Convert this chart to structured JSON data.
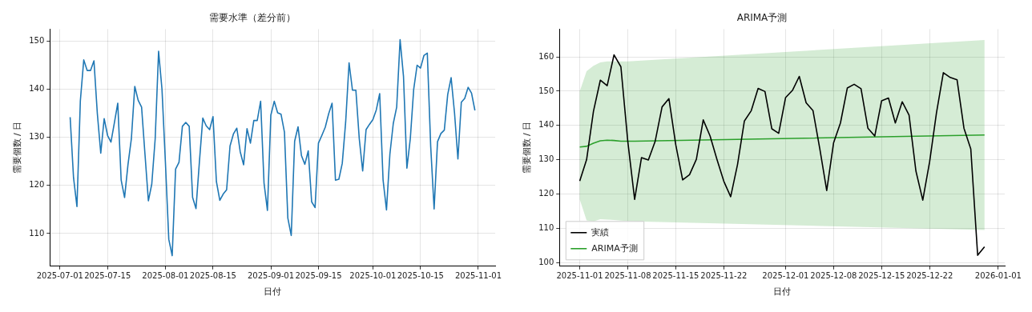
{
  "chart_data": [
    {
      "type": "line",
      "title": "需要水準（差分前）",
      "xlabel": "日付",
      "ylabel": "需要個数 / 日",
      "grid": true,
      "legend": false,
      "marker": "none",
      "line_style": "solid",
      "x": [
        "2025-07-04",
        "2025-07-05",
        "2025-07-06",
        "2025-07-07",
        "2025-07-08",
        "2025-07-09",
        "2025-07-10",
        "2025-07-11",
        "2025-07-12",
        "2025-07-13",
        "2025-07-14",
        "2025-07-15",
        "2025-07-16",
        "2025-07-17",
        "2025-07-18",
        "2025-07-19",
        "2025-07-20",
        "2025-07-21",
        "2025-07-22",
        "2025-07-23",
        "2025-07-24",
        "2025-07-25",
        "2025-07-26",
        "2025-07-27",
        "2025-07-28",
        "2025-07-29",
        "2025-07-30",
        "2025-07-31",
        "2025-08-01",
        "2025-08-02",
        "2025-08-03",
        "2025-08-04",
        "2025-08-05",
        "2025-08-06",
        "2025-08-07",
        "2025-08-08",
        "2025-08-09",
        "2025-08-10",
        "2025-08-11",
        "2025-08-12",
        "2025-08-13",
        "2025-08-14",
        "2025-08-15",
        "2025-08-16",
        "2025-08-17",
        "2025-08-18",
        "2025-08-19",
        "2025-08-20",
        "2025-08-21",
        "2025-08-22",
        "2025-08-23",
        "2025-08-24",
        "2025-08-25",
        "2025-08-26",
        "2025-08-27",
        "2025-08-28",
        "2025-08-29",
        "2025-08-30",
        "2025-08-31",
        "2025-09-01",
        "2025-09-02",
        "2025-09-03",
        "2025-09-04",
        "2025-09-05",
        "2025-09-06",
        "2025-09-07",
        "2025-09-08",
        "2025-09-09",
        "2025-09-10",
        "2025-09-11",
        "2025-09-12",
        "2025-09-13",
        "2025-09-14",
        "2025-09-15",
        "2025-09-16",
        "2025-09-17",
        "2025-09-18",
        "2025-09-19",
        "2025-09-20",
        "2025-09-21",
        "2025-09-22",
        "2025-09-23",
        "2025-09-24",
        "2025-09-25",
        "2025-09-26",
        "2025-09-27",
        "2025-09-28",
        "2025-09-29",
        "2025-09-30",
        "2025-10-01",
        "2025-10-02",
        "2025-10-03",
        "2025-10-04",
        "2025-10-05",
        "2025-10-06",
        "2025-10-07",
        "2025-10-08",
        "2025-10-09",
        "2025-10-10",
        "2025-10-11",
        "2025-10-12",
        "2025-10-13",
        "2025-10-14",
        "2025-10-15",
        "2025-10-16",
        "2025-10-17",
        "2025-10-18",
        "2025-10-19",
        "2025-10-20",
        "2025-10-21",
        "2025-10-22",
        "2025-10-23",
        "2025-10-24",
        "2025-10-25",
        "2025-10-26",
        "2025-10-27",
        "2025-10-28",
        "2025-10-29",
        "2025-10-30",
        "2025-10-31"
      ],
      "xlim": [
        "2025-06-28T01:12",
        "2025-11-05T22:48"
      ],
      "xticks": [
        "2025-07-01",
        "2025-07-15",
        "2025-08-01",
        "2025-08-15",
        "2025-09-01",
        "2025-09-15",
        "2025-10-01",
        "2025-10-15",
        "2025-11-01"
      ],
      "ylim": [
        103.2,
        152.5
      ],
      "yticks": [
        110,
        120,
        130,
        140,
        150
      ],
      "series": [
        {
          "color": "#1f77b4",
          "values": [
            134.2,
            121.6,
            115.6,
            137.6,
            146.1,
            143.9,
            143.9,
            145.9,
            134.9,
            126.7,
            133.9,
            130.4,
            129.0,
            133.0,
            137.1,
            121.1,
            117.5,
            124.3,
            129.7,
            140.6,
            137.7,
            136.3,
            126.5,
            116.8,
            120.3,
            129.7,
            147.9,
            140.0,
            124.9,
            108.8,
            105.4,
            123.4,
            124.8,
            132.3,
            133.1,
            132.3,
            117.5,
            115.2,
            124.9,
            134.0,
            132.4,
            131.6,
            134.3,
            120.8,
            116.9,
            118.2,
            119.1,
            128.2,
            130.7,
            131.9,
            127.0,
            124.3,
            131.8,
            128.8,
            133.5,
            133.5,
            137.5,
            120.5,
            114.8,
            134.6,
            137.5,
            135.1,
            134.8,
            131.1,
            113.2,
            109.6,
            129.2,
            132.2,
            126.2,
            124.4,
            127.2,
            116.6,
            115.4,
            128.8,
            130.4,
            132.1,
            134.9,
            137.1,
            121.1,
            121.3,
            124.6,
            133.2,
            145.5,
            139.8,
            139.8,
            129.7,
            123.0,
            131.6,
            132.7,
            133.7,
            135.7,
            139.1,
            121.1,
            114.9,
            126.5,
            132.9,
            136.3,
            150.3,
            142.7,
            123.6,
            129.7,
            140.0,
            145.0,
            144.4,
            147.0,
            147.5,
            128.1,
            115.1,
            129.1,
            130.8,
            131.5,
            138.9,
            142.4,
            135.1,
            125.5,
            137.3,
            138.1,
            140.4,
            139.2,
            135.6
          ]
        }
      ]
    },
    {
      "type": "line",
      "title": "ARIMA予測",
      "xlabel": "日付",
      "ylabel": "需要個数 / 日",
      "grid": true,
      "legend": "bottom left",
      "marker": "none",
      "line_style": "solid",
      "x": [
        "2025-11-01",
        "2025-11-02",
        "2025-11-03",
        "2025-11-04",
        "2025-11-05",
        "2025-11-06",
        "2025-11-07",
        "2025-11-08",
        "2025-11-09",
        "2025-11-10",
        "2025-11-11",
        "2025-11-12",
        "2025-11-13",
        "2025-11-14",
        "2025-11-15",
        "2025-11-16",
        "2025-11-17",
        "2025-11-18",
        "2025-11-19",
        "2025-11-20",
        "2025-11-21",
        "2025-11-22",
        "2025-11-23",
        "2025-11-24",
        "2025-11-25",
        "2025-11-26",
        "2025-11-27",
        "2025-11-28",
        "2025-11-29",
        "2025-11-30",
        "2025-12-01",
        "2025-12-02",
        "2025-12-03",
        "2025-12-04",
        "2025-12-05",
        "2025-12-06",
        "2025-12-07",
        "2025-12-08",
        "2025-12-09",
        "2025-12-10",
        "2025-12-11",
        "2025-12-12",
        "2025-12-13",
        "2025-12-14",
        "2025-12-15",
        "2025-12-16",
        "2025-12-17",
        "2025-12-18",
        "2025-12-19",
        "2025-12-20",
        "2025-12-21",
        "2025-12-22",
        "2025-12-23",
        "2025-12-24",
        "2025-12-25",
        "2025-12-26",
        "2025-12-27",
        "2025-12-28",
        "2025-12-29",
        "2025-12-30"
      ],
      "xlim": [
        "2025-10-29T01:12",
        "2026-01-01T22:48"
      ],
      "xticks": [
        "2025-11-01",
        "2025-11-08",
        "2025-11-15",
        "2025-11-22",
        "2025-12-01",
        "2025-12-08",
        "2025-12-15",
        "2025-12-22",
        "2026-01-01"
      ],
      "ylim": [
        98.9,
        168.1
      ],
      "yticks": [
        100,
        110,
        120,
        130,
        140,
        150,
        160
      ],
      "series": [
        {
          "name": "実績",
          "color": "#000000",
          "values": [
            123.8,
            130.0,
            144.1,
            153.2,
            151.6,
            160.6,
            157.1,
            135.4,
            118.4,
            130.6,
            129.9,
            135.4,
            145.4,
            147.8,
            134.3,
            124.1,
            125.6,
            130.1,
            141.6,
            136.9,
            130.1,
            123.7,
            119.2,
            128.6,
            141.3,
            144.3,
            150.8,
            149.9,
            139.0,
            137.7,
            148.1,
            150.2,
            154.3,
            146.6,
            144.3,
            133.1,
            121.0,
            134.9,
            140.7,
            150.9,
            152.0,
            150.7,
            139.2,
            136.9,
            147.2,
            148.0,
            140.7,
            146.9,
            143.0,
            126.7,
            118.2,
            129.4,
            143.7,
            155.4,
            154.0,
            153.3,
            139.2,
            133.1,
            102.1,
            104.6
          ]
        },
        {
          "name": "ARIMA予測",
          "color": "#2ca02c",
          "x": [
            "2025-11-01",
            "2025-11-02",
            "2025-11-03",
            "2025-11-04",
            "2025-11-05",
            "2025-11-06",
            "2025-11-07",
            "2025-11-08",
            "2025-11-09",
            "2025-12-30"
          ],
          "values": [
            133.7,
            133.9,
            134.8,
            135.5,
            135.7,
            135.6,
            135.4,
            135.4,
            135.4,
            137.2
          ],
          "lower": [
            118.4,
            112.3,
            112.0,
            112.6,
            112.5,
            112.4,
            112.2,
            112.1,
            112.0,
            109.5
          ],
          "upper": [
            149.9,
            155.8,
            157.4,
            158.4,
            158.7,
            158.7,
            158.7,
            158.7,
            158.8,
            164.9
          ]
        }
      ]
    }
  ]
}
